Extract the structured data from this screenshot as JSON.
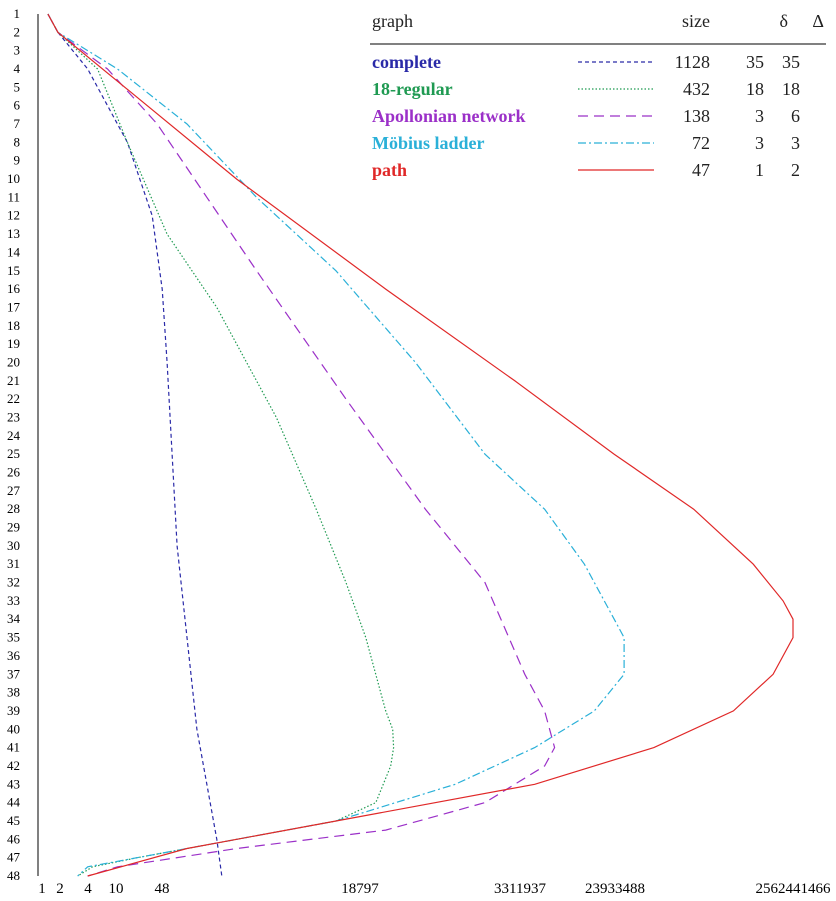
{
  "chart_data": {
    "type": "line",
    "y_ticks": [
      "1",
      "2",
      "3",
      "4",
      "5",
      "6",
      "7",
      "8",
      "9",
      "10",
      "11",
      "12",
      "13",
      "14",
      "15",
      "16",
      "17",
      "18",
      "19",
      "20",
      "21",
      "22",
      "23",
      "24",
      "25",
      "26",
      "27",
      "28",
      "29",
      "30",
      "31",
      "32",
      "33",
      "34",
      "35",
      "36",
      "37",
      "38",
      "39",
      "40",
      "41",
      "42",
      "43",
      "44",
      "45",
      "46",
      "47",
      "48"
    ],
    "x_ticks": [
      "1",
      "2",
      "4",
      "10",
      "48",
      "18797",
      "3311937",
      "23933488",
      "2562441466"
    ],
    "legend": {
      "headers": {
        "graph": "graph",
        "size": "size",
        "delta_min": "δ",
        "delta_max": "Δ"
      },
      "rows": [
        {
          "name": "complete",
          "size": "1128",
          "min_degree": "35",
          "max_degree": "35",
          "color": "#2a2aa8",
          "dash": "4 3"
        },
        {
          "name": "18-regular",
          "size": "432",
          "min_degree": "18",
          "max_degree": "18",
          "color": "#1f9a52",
          "dash": "1.5 2"
        },
        {
          "name": "Apollonian network",
          "size": "138",
          "min_degree": "3",
          "max_degree": "6",
          "color": "#9b30c8",
          "dash": "10 6"
        },
        {
          "name": "Möbius ladder",
          "size": "72",
          "min_degree": "3",
          "max_degree": "3",
          "color": "#2ab0d8",
          "dash": "8 3 2 3"
        },
        {
          "name": "path",
          "size": "47",
          "min_degree": "1",
          "max_degree": "2",
          "color": "#e02828",
          "dash": ""
        }
      ]
    },
    "series": [
      {
        "name": "complete",
        "points": [
          [
            1,
            1
          ],
          [
            2,
            2
          ],
          [
            5,
            4
          ],
          [
            9,
            8
          ],
          [
            11.5,
            12
          ],
          [
            12.5,
            16
          ],
          [
            13,
            20
          ],
          [
            14,
            30
          ],
          [
            16,
            40
          ],
          [
            18,
            46
          ],
          [
            18.5,
            48
          ]
        ]
      },
      {
        "name": "18-regular",
        "points": [
          [
            1,
            1
          ],
          [
            2,
            2
          ],
          [
            6,
            4
          ],
          [
            9,
            8
          ],
          [
            13,
            13
          ],
          [
            18,
            17
          ],
          [
            24,
            23
          ],
          [
            28,
            28
          ],
          [
            31,
            32
          ],
          [
            33,
            35
          ],
          [
            35,
            39
          ],
          [
            35.7,
            40
          ],
          [
            35.8,
            41
          ],
          [
            35.5,
            42
          ],
          [
            34,
            44
          ],
          [
            30,
            45
          ],
          [
            20,
            46
          ],
          [
            10,
            47
          ],
          [
            5.5,
            47.5
          ],
          [
            4,
            48
          ]
        ]
      },
      {
        "name": "Apollonian network",
        "points": [
          [
            1,
            1
          ],
          [
            2,
            2
          ],
          [
            7,
            4
          ],
          [
            12,
            7
          ],
          [
            17,
            11
          ],
          [
            22,
            15
          ],
          [
            31,
            22
          ],
          [
            39,
            28
          ],
          [
            45,
            32
          ],
          [
            49,
            37
          ],
          [
            51,
            39
          ],
          [
            52,
            41
          ],
          [
            51,
            42
          ],
          [
            45,
            44
          ],
          [
            35,
            45.5
          ],
          [
            20,
            46.5
          ],
          [
            8,
            47.5
          ],
          [
            5,
            48
          ]
        ]
      },
      {
        "name": "Möbius ladder",
        "points": [
          [
            1,
            1
          ],
          [
            2,
            2
          ],
          [
            8,
            4
          ],
          [
            15,
            7
          ],
          [
            22,
            11
          ],
          [
            30,
            15
          ],
          [
            38,
            20
          ],
          [
            45,
            25
          ],
          [
            51,
            28
          ],
          [
            55,
            31
          ],
          [
            58,
            34
          ],
          [
            59,
            35
          ],
          [
            59,
            37
          ],
          [
            56,
            39
          ],
          [
            50,
            41
          ],
          [
            42,
            43
          ],
          [
            30,
            45
          ],
          [
            15,
            46.5
          ],
          [
            5,
            47.5
          ],
          [
            4,
            48
          ]
        ]
      },
      {
        "name": "path",
        "points": [
          [
            1,
            1
          ],
          [
            2,
            2
          ],
          [
            11,
            6
          ],
          [
            20,
            10
          ],
          [
            35,
            16
          ],
          [
            48,
            21
          ],
          [
            58,
            25
          ],
          [
            66,
            28
          ],
          [
            72,
            31
          ],
          [
            75,
            33
          ],
          [
            76,
            34
          ],
          [
            76,
            35
          ],
          [
            74,
            37
          ],
          [
            70,
            39
          ],
          [
            62,
            41
          ],
          [
            50,
            43
          ],
          [
            30,
            45
          ],
          [
            15,
            46.5
          ],
          [
            5,
            48
          ]
        ]
      }
    ]
  }
}
